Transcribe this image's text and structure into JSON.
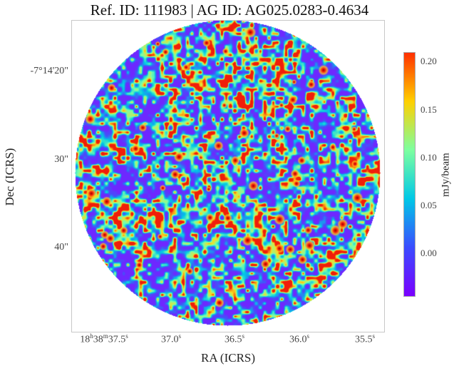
{
  "title": "Ref. ID: 111983 | AG ID: AG025.0283-0.4634",
  "axes": {
    "xlabel": "RA (ICRS)",
    "ylabel": "Dec (ICRS)",
    "y_ticks": [
      "-7°14'20\"",
      "30\"",
      "40\""
    ],
    "x_ticks": [
      {
        "main": "18",
        "h": "h",
        "m_val": "38",
        "m": "m",
        "s_val": "37.5",
        "s": "s"
      },
      {
        "main": "37.0",
        "s": "s"
      },
      {
        "main": "36.5",
        "s": "s"
      },
      {
        "main": "36.0",
        "s": "s"
      },
      {
        "main": "35.5",
        "s": "s"
      }
    ]
  },
  "colorbar": {
    "label": "mJy/beam",
    "ticks": [
      "0.20",
      "0.15",
      "0.10",
      "0.05",
      "0.00"
    ],
    "vmin": -0.045,
    "vmax": 0.21,
    "colormap": "rainbow",
    "colors": [
      "#7a00ff",
      "#3a4cff",
      "#00c8e6",
      "#7dffa0",
      "#ffd000",
      "#ff3000"
    ]
  },
  "image": {
    "description_type": "circular noise map",
    "dominant_colors": [
      "#6a2cff",
      "#00d0e0",
      "#80ffa0",
      "#ff2000"
    ]
  }
}
